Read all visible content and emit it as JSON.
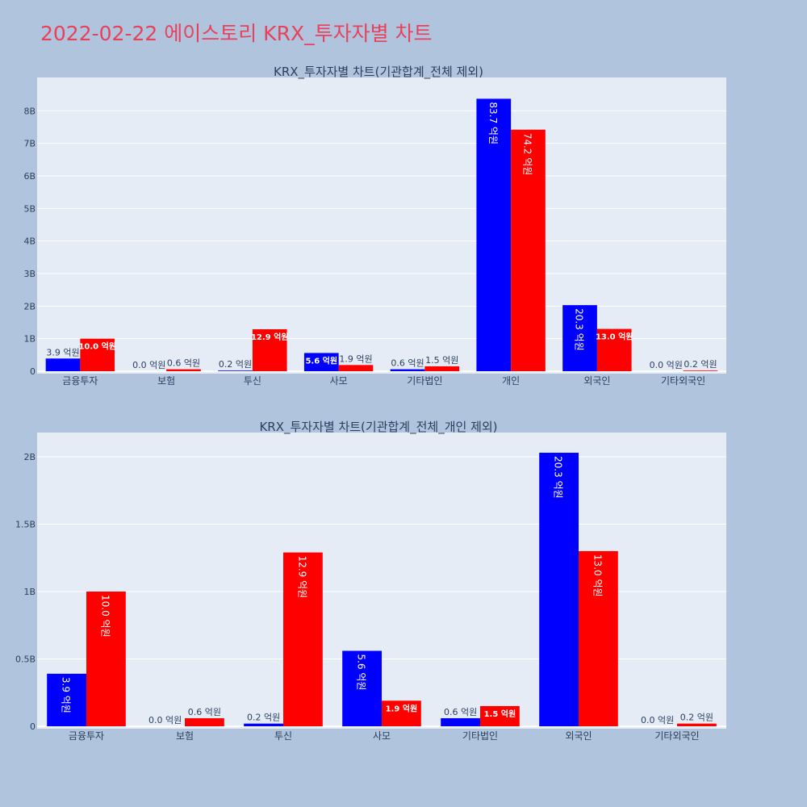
{
  "page_title": "2022-02-22 에이스토리 KRX_투자자별 차트",
  "colors": {
    "buy": "#0000ff",
    "sell": "#ff0000",
    "title": "#e8415a",
    "plot_bg": "#e5ecf6",
    "page_bg": "#b0c4de"
  },
  "chart_data": [
    {
      "type": "bar",
      "title": "KRX_투자자별 차트(기관합계_전체 제외)",
      "categories": [
        "금융투자",
        "보험",
        "투신",
        "사모",
        "기타법인",
        "개인",
        "외국인",
        "기타외국인"
      ],
      "series": [
        {
          "values": [
            390000000,
            0,
            20000000,
            560000000,
            60000000,
            8370000000,
            2030000000,
            0
          ],
          "labels": [
            "3.9 억원",
            "0.0 억원",
            "0.2 억원",
            "5.6 억원",
            "0.6 억원",
            "83.7 억원",
            "20.3 억원",
            "0.0 억원"
          ]
        },
        {
          "values": [
            1000000000,
            60000000,
            1290000000,
            190000000,
            150000000,
            7420000000,
            1300000000,
            20000000
          ],
          "labels": [
            "10.0 억원",
            "0.6 억원",
            "12.9 억원",
            "1.9 억원",
            "1.5 억원",
            "74.2 억원",
            "13.0 억원",
            "0.2 억원"
          ]
        }
      ],
      "ylim": [
        0,
        8900000000
      ],
      "yticks": [
        0,
        1000000000,
        2000000000,
        3000000000,
        4000000000,
        5000000000,
        6000000000,
        7000000000,
        8000000000
      ],
      "ytick_labels": [
        "0",
        "1B",
        "2B",
        "3B",
        "4B",
        "5B",
        "6B",
        "7B",
        "8B"
      ]
    },
    {
      "type": "bar",
      "title": "KRX_투자자별 차트(기관합계_전체_개인 제외)",
      "categories": [
        "금융투자",
        "보험",
        "투신",
        "사모",
        "기타법인",
        "외국인",
        "기타외국인"
      ],
      "series": [
        {
          "values": [
            390000000,
            0,
            20000000,
            560000000,
            60000000,
            2030000000,
            0
          ],
          "labels": [
            "3.9 억원",
            "0.0 억원",
            "0.2 억원",
            "5.6 억원",
            "0.6 억원",
            "20.3 억원",
            "0.0 억원"
          ]
        },
        {
          "values": [
            1000000000,
            60000000,
            1290000000,
            190000000,
            150000000,
            1300000000,
            20000000
          ],
          "labels": [
            "10.0 억원",
            "0.6 억원",
            "12.9 억원",
            "1.9 억원",
            "1.5 억원",
            "13.0 억원",
            "0.2 억원"
          ]
        }
      ],
      "ylim": [
        0,
        2150000000
      ],
      "yticks": [
        0,
        500000000,
        1000000000,
        1500000000,
        2000000000
      ],
      "ytick_labels": [
        "0",
        "0.5B",
        "1B",
        "1.5B",
        "2B"
      ]
    }
  ]
}
